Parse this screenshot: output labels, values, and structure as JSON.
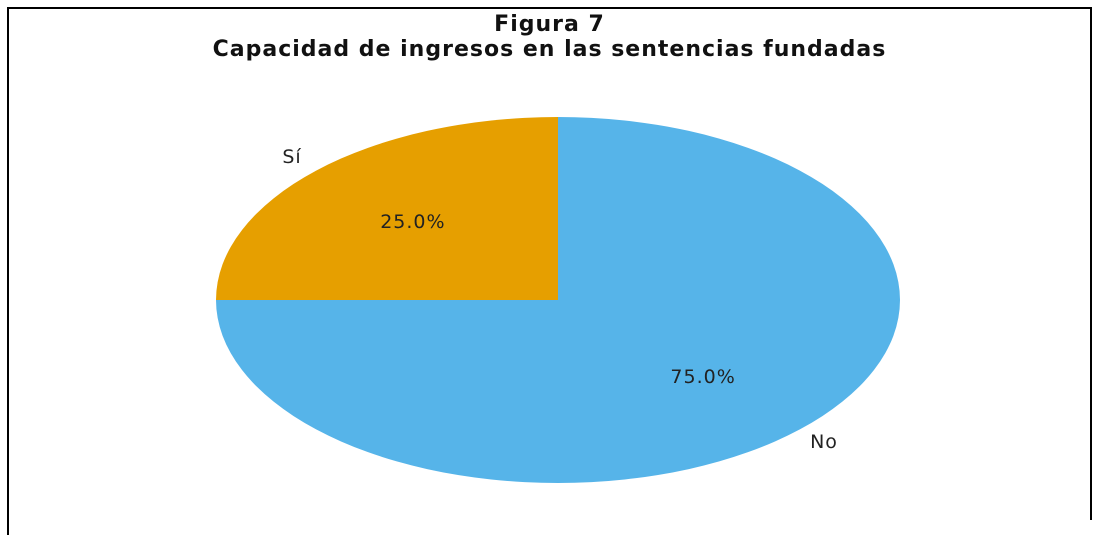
{
  "chart_data": {
    "type": "pie",
    "title": "Figura 7\nCapacidad de ingresos en las sentencias fundadas",
    "categories": [
      "Sí",
      "No"
    ],
    "values": [
      25,
      75
    ],
    "value_labels": [
      "25.0%",
      "75.0%"
    ],
    "colors": [
      "#E69F00",
      "#56B4E9"
    ]
  }
}
